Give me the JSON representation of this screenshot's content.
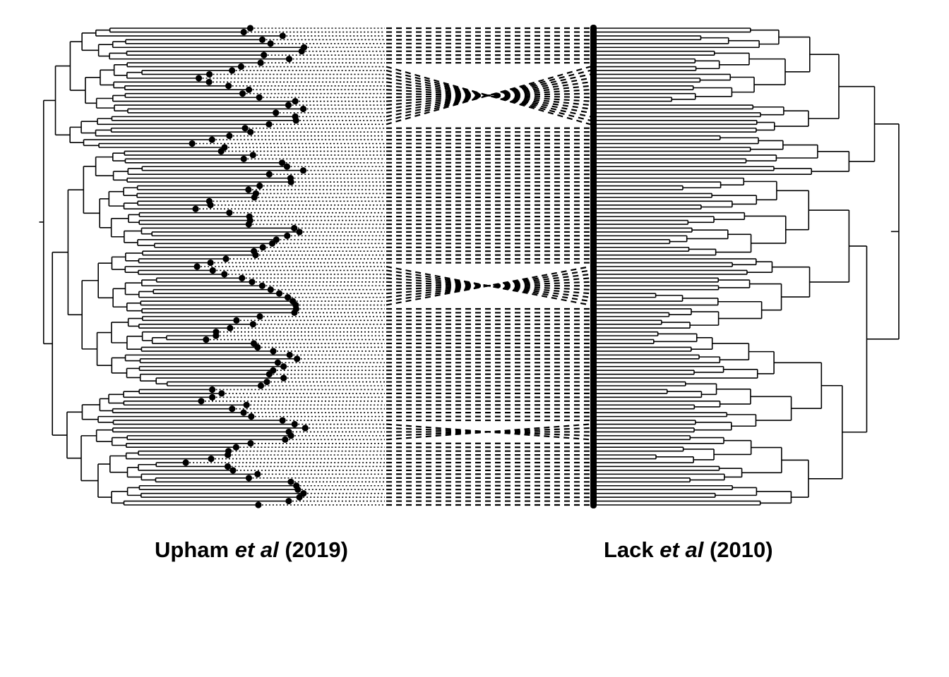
{
  "left_tree": {
    "author": "Upham",
    "etal": "et al",
    "year": "(2019)"
  },
  "right_tree": {
    "author": "Lack",
    "etal": "et al",
    "year": "(2010)"
  },
  "colors": {
    "ink": "#000000",
    "background": "#ffffff"
  }
}
